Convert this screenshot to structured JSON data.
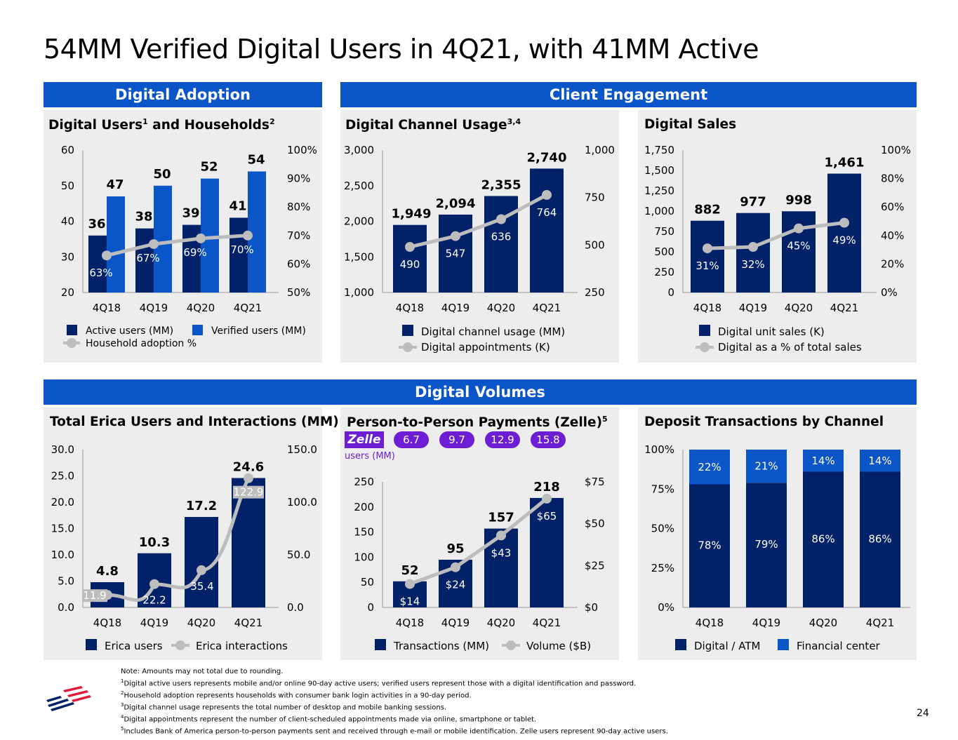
{
  "page": {
    "title": "54MM Verified Digital Users in 4Q21, with 41MM Active",
    "page_number": "24"
  },
  "banners": {
    "digital_adoption": "Digital Adoption",
    "client_engagement": "Client Engagement",
    "digital_volumes": "Digital Volumes"
  },
  "panels": {
    "users_households": {
      "title": "Digital Users",
      "title_sup1": "1",
      "title_mid": " and Households",
      "title_sup2": "2"
    },
    "channel_usage": {
      "title": "Digital Channel Usage",
      "title_sup": "3,4"
    },
    "digital_sales": {
      "title": "Digital Sales"
    },
    "erica": {
      "title": "Total Erica Users and Interactions (MM)"
    },
    "zelle": {
      "title": "Person-to-Person Payments (Zelle)",
      "title_sup": "5"
    },
    "deposit": {
      "title": "Deposit Transactions by Channel"
    }
  },
  "zelle_users": {
    "logo_text": "Zelle",
    "label": "users (MM)",
    "values": [
      "6.7",
      "9.7",
      "12.9",
      "15.8"
    ]
  },
  "colors": {
    "navy": "#012169",
    "blue": "#0A55C8",
    "gray_line": "#BDBDBD",
    "panel_bg": "#EDEDED",
    "zelle_purple": "#6D1ED4"
  },
  "chart_data": [
    {
      "id": "users_households",
      "type": "bar",
      "categories": [
        "4Q18",
        "4Q19",
        "4Q20",
        "4Q21"
      ],
      "series": [
        {
          "name": "Active users (MM)",
          "values": [
            36,
            38,
            39,
            41
          ],
          "labels": [
            "36",
            "38",
            "39",
            "41"
          ],
          "color": "#012169"
        },
        {
          "name": "Verified users (MM)",
          "values": [
            47,
            50,
            52,
            54
          ],
          "labels": [
            "47",
            "50",
            "52",
            "54"
          ],
          "color": "#0A55C8"
        }
      ],
      "line": {
        "name": "Household adoption %",
        "values": [
          63,
          67,
          69,
          70
        ],
        "labels": [
          "63%",
          "67%",
          "69%",
          "70%"
        ],
        "axis": "right"
      },
      "ylim": [
        20,
        60
      ],
      "yticks": [
        "60",
        "50",
        "40",
        "30",
        "20"
      ],
      "y2lim": [
        50,
        100
      ],
      "y2ticks": [
        "100%",
        "90%",
        "80%",
        "70%",
        "60%",
        "50%"
      ],
      "legend": [
        "Active users (MM)",
        "Verified users (MM)",
        "Household adoption %"
      ]
    },
    {
      "id": "channel_usage",
      "type": "bar",
      "categories": [
        "4Q18",
        "4Q19",
        "4Q20",
        "4Q21"
      ],
      "series": [
        {
          "name": "Digital channel usage (MM)",
          "values": [
            1949,
            2094,
            2355,
            2740
          ],
          "labels": [
            "1,949",
            "2,094",
            "2,355",
            "2,740"
          ],
          "color": "#012169"
        }
      ],
      "line": {
        "name": "Digital appointments (K)",
        "values": [
          490,
          547,
          636,
          764
        ],
        "labels": [
          "490",
          "547",
          "636",
          "764"
        ],
        "axis": "right"
      },
      "ylim": [
        1000,
        3000
      ],
      "yticks": [
        "3,000",
        "2,500",
        "2,000",
        "1,500",
        "1,000"
      ],
      "y2lim": [
        250,
        1000
      ],
      "y2ticks": [
        "1,000",
        "750",
        "500",
        "250"
      ],
      "legend": [
        "Digital channel usage (MM)",
        "Digital appointments (K)"
      ]
    },
    {
      "id": "digital_sales",
      "type": "bar",
      "categories": [
        "4Q18",
        "4Q19",
        "4Q20",
        "4Q21"
      ],
      "series": [
        {
          "name": "Digital unit sales (K)",
          "values": [
            882,
            977,
            998,
            1461
          ],
          "labels": [
            "882",
            "977",
            "998",
            "1,461"
          ],
          "color": "#012169"
        }
      ],
      "line": {
        "name": "Digital as a % of total sales",
        "values": [
          31,
          32,
          45,
          49
        ],
        "labels": [
          "31%",
          "32%",
          "45%",
          "49%"
        ],
        "axis": "right"
      },
      "ylim": [
        0,
        1750
      ],
      "yticks": [
        "1,750",
        "1,500",
        "1,250",
        "1,000",
        "750",
        "500",
        "250",
        "0"
      ],
      "y2lim": [
        0,
        100
      ],
      "y2ticks": [
        "100%",
        "80%",
        "60%",
        "40%",
        "20%",
        "0%"
      ],
      "legend": [
        "Digital unit sales (K)",
        "Digital as a % of total sales"
      ]
    },
    {
      "id": "erica",
      "type": "bar",
      "categories": [
        "4Q18",
        "4Q19",
        "4Q20",
        "4Q21"
      ],
      "series": [
        {
          "name": "Erica users",
          "values": [
            4.8,
            10.3,
            17.2,
            24.6
          ],
          "labels": [
            "4.8",
            "10.3",
            "17.2",
            "24.6"
          ],
          "color": "#012169"
        }
      ],
      "line": {
        "name": "Erica interactions",
        "values": [
          11.9,
          22.2,
          35.4,
          122.9
        ],
        "labels": [
          "11.9",
          "22.2",
          "35.4",
          "122.9"
        ],
        "axis": "right"
      },
      "ylim": [
        0,
        30
      ],
      "yticks": [
        "30.0",
        "25.0",
        "20.0",
        "15.0",
        "10.0",
        "5.0",
        "0.0"
      ],
      "y2lim": [
        0,
        150
      ],
      "y2ticks": [
        "150.0",
        "100.0",
        "50.0",
        "0.0"
      ],
      "legend": [
        "Erica users",
        "Erica interactions"
      ]
    },
    {
      "id": "zelle",
      "type": "bar",
      "categories": [
        "4Q18",
        "4Q19",
        "4Q20",
        "4Q21"
      ],
      "series": [
        {
          "name": "Transactions (MM)",
          "values": [
            52,
            95,
            157,
            218
          ],
          "labels": [
            "52",
            "95",
            "157",
            "218"
          ],
          "color": "#012169"
        }
      ],
      "line": {
        "name": "Volume ($B)",
        "values": [
          14,
          24,
          43,
          65
        ],
        "labels": [
          "$14",
          "$24",
          "$43",
          "$65"
        ],
        "axis": "right"
      },
      "ylim": [
        0,
        250
      ],
      "yticks": [
        "250",
        "200",
        "150",
        "100",
        "50",
        "0"
      ],
      "y2lim": [
        0,
        75
      ],
      "y2ticks": [
        "$75",
        "$50",
        "$25",
        "$0"
      ],
      "legend": [
        "Transactions (MM)",
        "Volume ($B)"
      ]
    },
    {
      "id": "deposit",
      "type": "bar",
      "stacked": true,
      "categories": [
        "4Q18",
        "4Q19",
        "4Q20",
        "4Q21"
      ],
      "series": [
        {
          "name": "Digital / ATM",
          "values": [
            78,
            79,
            86,
            86
          ],
          "labels": [
            "78%",
            "79%",
            "86%",
            "86%"
          ],
          "color": "#012169"
        },
        {
          "name": "Financial center",
          "values": [
            22,
            21,
            14,
            14
          ],
          "labels": [
            "22%",
            "21%",
            "14%",
            "14%"
          ],
          "color": "#0A55C8"
        }
      ],
      "ylim": [
        0,
        100
      ],
      "yticks": [
        "100%",
        "75%",
        "50%",
        "25%",
        "0%"
      ],
      "legend": [
        "Digital / ATM",
        "Financial center"
      ]
    }
  ],
  "footnotes": {
    "note": "Note: Amounts may not total due to rounding.",
    "items": [
      {
        "n": "1",
        "text": "Digital active users represents mobile and/or online 90-day active users; verified users represent those with a digital identification and password."
      },
      {
        "n": "2",
        "text": "Household adoption represents households with consumer bank login activities in a 90-day period."
      },
      {
        "n": "3",
        "text": "Digital channel usage represents the total number of desktop and mobile banking sessions."
      },
      {
        "n": "4",
        "text": "Digital appointments represent the number of client-scheduled appointments made via online, smartphone or tablet."
      },
      {
        "n": "5",
        "text": "Includes Bank of America person-to-person payments sent and received through e-mail or mobile identification. Zelle users represent 90-day active users."
      }
    ]
  }
}
